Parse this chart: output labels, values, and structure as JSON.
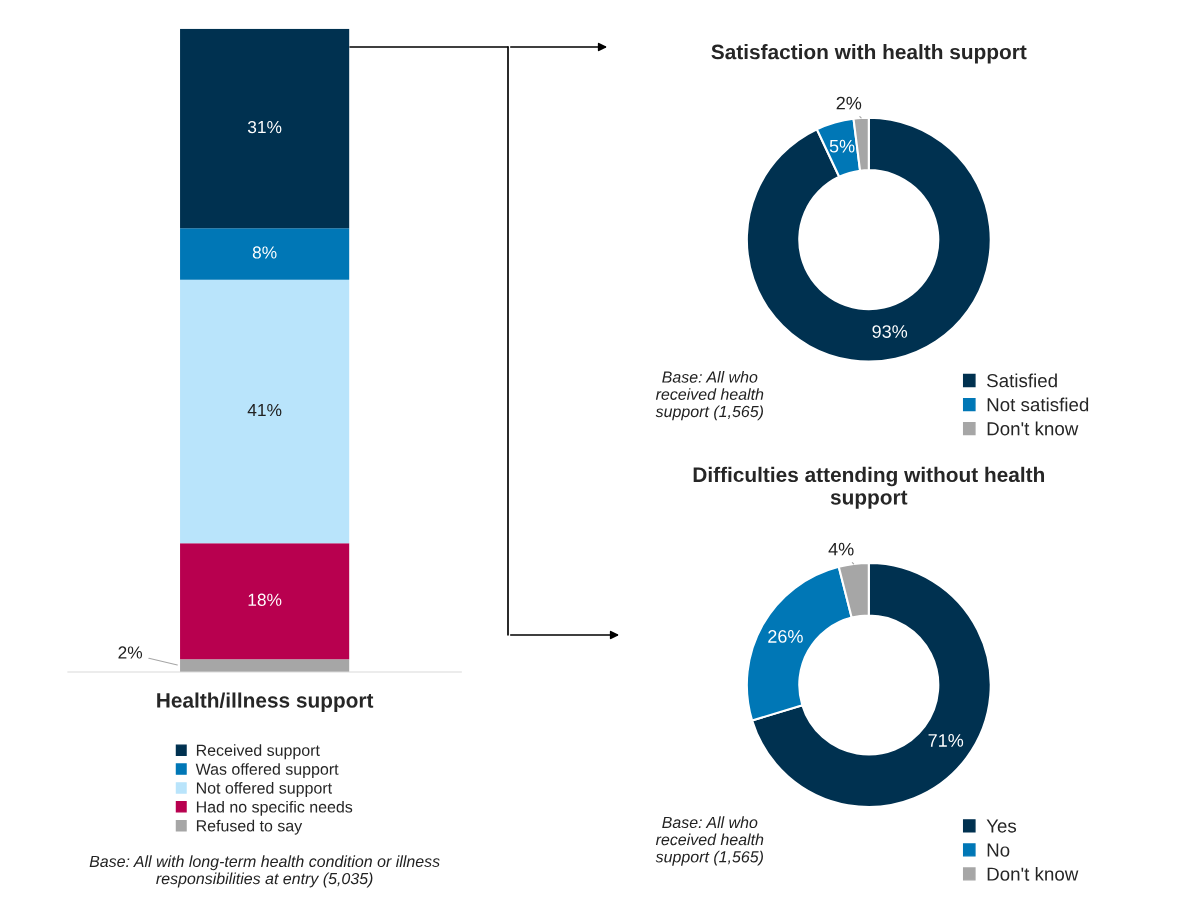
{
  "chart_data": [
    {
      "type": "bar",
      "stacked": true,
      "title": "Health/illness support",
      "categories": [
        null
      ],
      "legend": "bottom",
      "series": [
        {
          "name": "Refused to say",
          "color": "#a6a6a6",
          "values": [
            2
          ],
          "value_labels": [
            "2%"
          ]
        },
        {
          "name": "Had no specific needs",
          "color": "#b8004f",
          "values": [
            18
          ],
          "value_labels": [
            "18%"
          ]
        },
        {
          "name": "Not offered support",
          "color": "#b9e4fb",
          "values": [
            41
          ],
          "value_labels": [
            "41%"
          ]
        },
        {
          "name": "Was offered support",
          "color": "#0077b6",
          "values": [
            8
          ],
          "value_labels": [
            "8%"
          ]
        },
        {
          "name": "Received support",
          "color": "#003150",
          "values": [
            31
          ],
          "value_labels": [
            "31%"
          ]
        }
      ],
      "annotations": [
        "Base: All with long-term health condition or illness\nresponsibilities at entry (5,035)"
      ]
    },
    {
      "type": "donut",
      "title": "Satisfaction with health support",
      "categories": [
        "Satisfied",
        "Not satisfied",
        "Don't know"
      ],
      "values": [
        93,
        5,
        2
      ],
      "value_labels": [
        "93%",
        "5%",
        "2%"
      ],
      "colors": [
        "#003150",
        "#0077b6",
        "#a6a6a6"
      ],
      "legend": "bottom right",
      "annotations": [
        "Base: All who\nreceived health\nsupport (1,565)"
      ]
    },
    {
      "type": "donut",
      "title": "Difficulties attending without health\nsupport",
      "categories": [
        "Yes",
        "No",
        "Don't know"
      ],
      "values": [
        71,
        26,
        4
      ],
      "value_labels": [
        "71%",
        "26%",
        "4%"
      ],
      "colors": [
        "#003150",
        "#0077b6",
        "#a6a6a6"
      ],
      "legend": "bottom right",
      "annotations": [
        "Base: All who\nreceived health\nsupport (1,565)"
      ]
    }
  ]
}
